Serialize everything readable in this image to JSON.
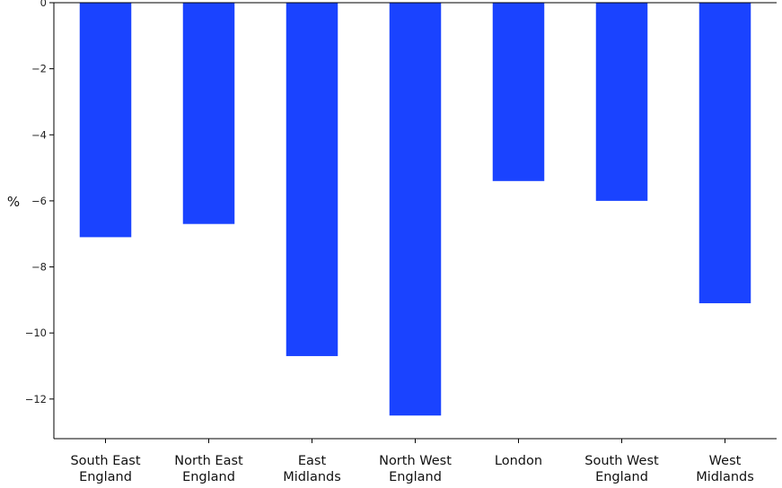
{
  "chart_data": {
    "type": "bar",
    "categories": [
      [
        "South East",
        "England"
      ],
      [
        "North East",
        "England"
      ],
      [
        "East",
        "Midlands"
      ],
      [
        "North West",
        "England"
      ],
      [
        "London"
      ],
      [
        "South West",
        "England"
      ],
      [
        "West",
        "Midlands"
      ]
    ],
    "values": [
      -7.1,
      -6.7,
      -10.7,
      -12.5,
      -5.4,
      -6.0,
      -9.1
    ],
    "ylabel": "%",
    "ylim": [
      -13.2,
      0
    ],
    "yticks": [
      0,
      -2,
      -4,
      -6,
      -8,
      -10,
      -12
    ],
    "ytick_labels": [
      "0",
      "−2",
      "−4",
      "−6",
      "−8",
      "−10",
      "−12"
    ],
    "bar_color": "#1a43ff",
    "grid": false,
    "legend": "none"
  }
}
